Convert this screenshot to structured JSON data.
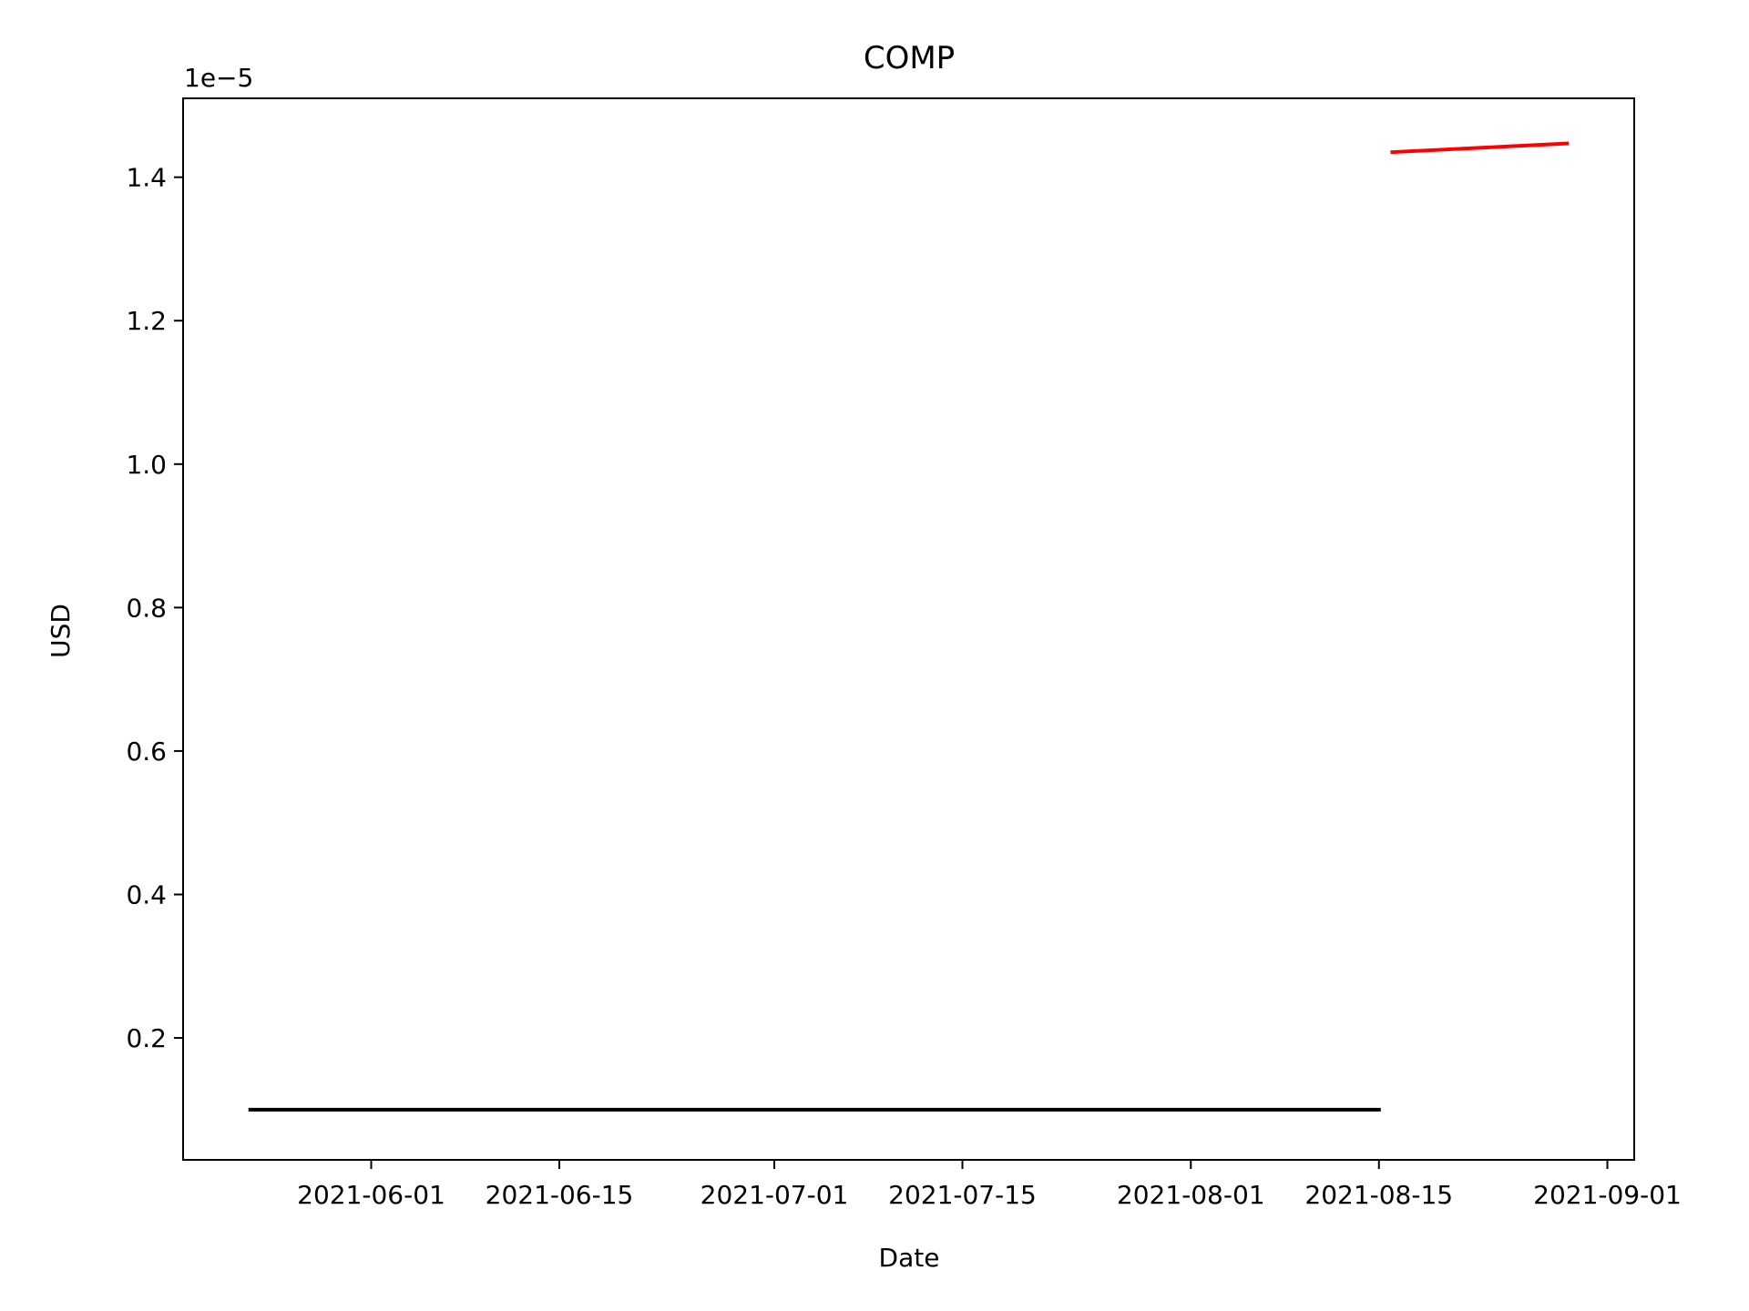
{
  "chart_data": {
    "type": "line",
    "title": "COMP",
    "xlabel": "Date",
    "ylabel": "USD",
    "y_offset_label": "1e−5",
    "grid": false,
    "legend": "none",
    "xlim": [
      "2021-05-18",
      "2021-09-03"
    ],
    "ylim": [
      3e-07,
      1.51e-05
    ],
    "x_ticks": [
      {
        "date": "2021-06-01",
        "label": "2021-06-01"
      },
      {
        "date": "2021-06-15",
        "label": "2021-06-15"
      },
      {
        "date": "2021-07-01",
        "label": "2021-07-01"
      },
      {
        "date": "2021-07-15",
        "label": "2021-07-15"
      },
      {
        "date": "2021-08-01",
        "label": "2021-08-01"
      },
      {
        "date": "2021-08-15",
        "label": "2021-08-15"
      },
      {
        "date": "2021-09-01",
        "label": "2021-09-01"
      }
    ],
    "y_ticks": [
      {
        "value": 2e-06,
        "label": "0.2"
      },
      {
        "value": 4e-06,
        "label": "0.4"
      },
      {
        "value": 6e-06,
        "label": "0.6"
      },
      {
        "value": 8e-06,
        "label": "0.8"
      },
      {
        "value": 1e-05,
        "label": "1.0"
      },
      {
        "value": 1.2e-05,
        "label": "1.2"
      },
      {
        "value": 1.4e-05,
        "label": "1.4"
      }
    ],
    "series": [
      {
        "color": "#000000",
        "points": [
          {
            "x": "2021-05-23",
            "y": 1e-06
          },
          {
            "x": "2021-08-15",
            "y": 1e-06
          }
        ]
      },
      {
        "color": "#ff0000",
        "points": [
          {
            "x": "2021-08-16",
            "y": 1.435e-05
          },
          {
            "x": "2021-08-29",
            "y": 1.447e-05
          }
        ]
      }
    ]
  }
}
